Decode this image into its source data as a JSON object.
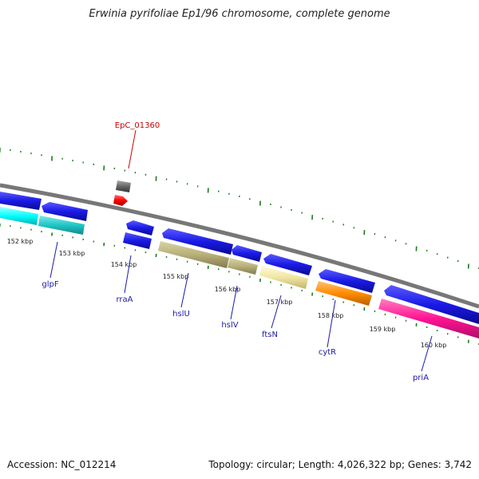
{
  "title": "Erwinia pyrifoliae Ep1/96 chromosome, complete genome",
  "footer": {
    "accession": "Accession: NC_012214",
    "summary": "Topology: circular; Length: 4,026,322 bp; Genes: 3,742"
  },
  "colors": {
    "backbone": "#888888",
    "cds_blue": "#1a1ae6",
    "ticks": "#1a7a1a",
    "gene_label": "#1a1aa8",
    "callout": "#cc0000",
    "glpF": "#20c6c6",
    "hslU": "#b8b07a",
    "hslV": "#b8b07a",
    "ftsN": "#f0e6a0",
    "cytR": "#ff8c00",
    "priA": "#ff1493",
    "left_cyan": "#00ffff",
    "red_feature": "#ff0000",
    "grey_feature": "#666666"
  },
  "ticks": [
    "152 kbp",
    "153 kbp",
    "154 kbp",
    "155 kbp",
    "156 kbp",
    "157 kbp",
    "158 kbp",
    "159 kbp",
    "160 kbp"
  ],
  "genes": [
    {
      "name": "glpF",
      "color": "#20c6c6"
    },
    {
      "name": "rraA",
      "color": "#1a1ae6"
    },
    {
      "name": "hslU",
      "color": "#b8b07a"
    },
    {
      "name": "hslV",
      "color": "#b8b07a"
    },
    {
      "name": "ftsN",
      "color": "#f0e6a0"
    },
    {
      "name": "cytR",
      "color": "#ff8c00"
    },
    {
      "name": "priA",
      "color": "#ff1493"
    }
  ],
  "callout": {
    "label": "EpC_01360"
  }
}
